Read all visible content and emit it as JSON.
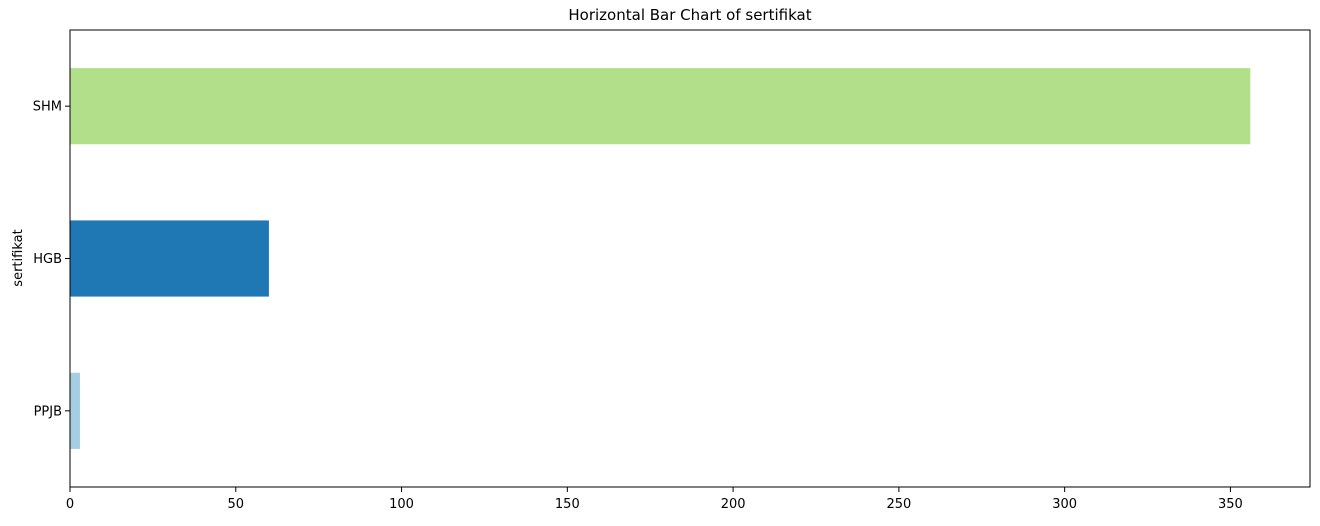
{
  "chart_data": {
    "type": "bar",
    "orientation": "horizontal",
    "title": "Horizontal Bar Chart of sertifikat",
    "xlabel": "",
    "ylabel": "sertifikat",
    "categories": [
      "PPJB",
      "HGB",
      "SHM"
    ],
    "values": [
      3,
      60,
      356
    ],
    "colors": [
      "#a6cee3",
      "#1f78b4",
      "#b2df8a"
    ],
    "xlim": [
      0,
      374
    ],
    "xticks": [
      0,
      50,
      100,
      150,
      200,
      250,
      300,
      350
    ],
    "grid": false,
    "legend": "none"
  }
}
